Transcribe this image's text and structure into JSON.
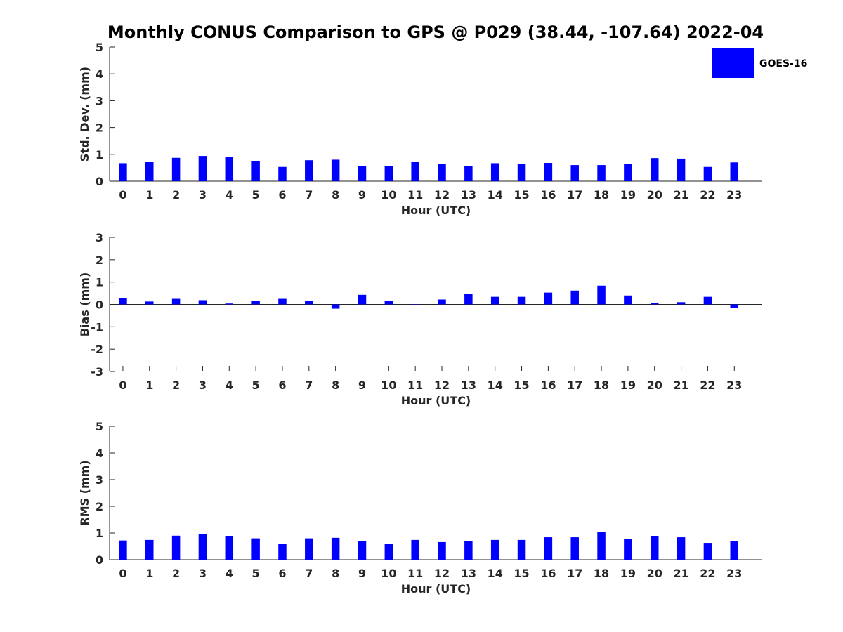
{
  "figure_title": "Monthly CONUS Comparison to GPS @ P029 (38.44, -107.64) 2022-04",
  "legend": {
    "label": "GOES-16",
    "color": "#0000ff"
  },
  "chart_data": [
    {
      "type": "bar",
      "name": "std-dev",
      "title": "Monthly CONUS Comparison to GPS @ P029 (38.44, -107.64) 2022-04",
      "xlabel": "Hour (UTC)",
      "ylabel": "Std. Dev. (mm)",
      "ylim": [
        0,
        5
      ],
      "yticks": [
        0,
        1,
        2,
        3,
        4,
        5
      ],
      "categories": [
        "0",
        "1",
        "2",
        "3",
        "4",
        "5",
        "6",
        "7",
        "8",
        "9",
        "10",
        "11",
        "12",
        "13",
        "14",
        "15",
        "16",
        "17",
        "18",
        "19",
        "20",
        "21",
        "22",
        "23"
      ],
      "series": [
        {
          "name": "GOES-16",
          "color": "#0000ff",
          "values": [
            0.67,
            0.73,
            0.87,
            0.94,
            0.89,
            0.76,
            0.53,
            0.78,
            0.8,
            0.55,
            0.57,
            0.72,
            0.63,
            0.55,
            0.67,
            0.65,
            0.68,
            0.6,
            0.6,
            0.65,
            0.86,
            0.84,
            0.53,
            0.7
          ]
        }
      ]
    },
    {
      "type": "bar",
      "name": "bias",
      "xlabel": "Hour (UTC)",
      "ylabel": "Bias (mm)",
      "ylim": [
        -3,
        3
      ],
      "yticks": [
        -3,
        -2,
        -1,
        0,
        1,
        2,
        3
      ],
      "categories": [
        "0",
        "1",
        "2",
        "3",
        "4",
        "5",
        "6",
        "7",
        "8",
        "9",
        "10",
        "11",
        "12",
        "13",
        "14",
        "15",
        "16",
        "17",
        "18",
        "19",
        "20",
        "21",
        "22",
        "23"
      ],
      "series": [
        {
          "name": "GOES-16",
          "color": "#0000ff",
          "values": [
            0.28,
            0.13,
            0.25,
            0.19,
            0.04,
            0.16,
            0.25,
            0.16,
            -0.19,
            0.43,
            0.16,
            -0.04,
            0.22,
            0.47,
            0.34,
            0.34,
            0.53,
            0.62,
            0.84,
            0.4,
            0.07,
            0.1,
            0.34,
            -0.16
          ]
        }
      ]
    },
    {
      "type": "bar",
      "name": "rms",
      "xlabel": "Hour (UTC)",
      "ylabel": "RMS (mm)",
      "ylim": [
        0,
        5
      ],
      "yticks": [
        0,
        1,
        2,
        3,
        4,
        5
      ],
      "categories": [
        "0",
        "1",
        "2",
        "3",
        "4",
        "5",
        "6",
        "7",
        "8",
        "9",
        "10",
        "11",
        "12",
        "13",
        "14",
        "15",
        "16",
        "17",
        "18",
        "19",
        "20",
        "21",
        "22",
        "23"
      ],
      "series": [
        {
          "name": "GOES-16",
          "color": "#0000ff",
          "values": [
            0.72,
            0.74,
            0.9,
            0.96,
            0.88,
            0.8,
            0.59,
            0.8,
            0.82,
            0.71,
            0.59,
            0.74,
            0.66,
            0.71,
            0.74,
            0.74,
            0.84,
            0.84,
            1.03,
            0.77,
            0.87,
            0.84,
            0.63,
            0.7
          ]
        }
      ]
    }
  ]
}
